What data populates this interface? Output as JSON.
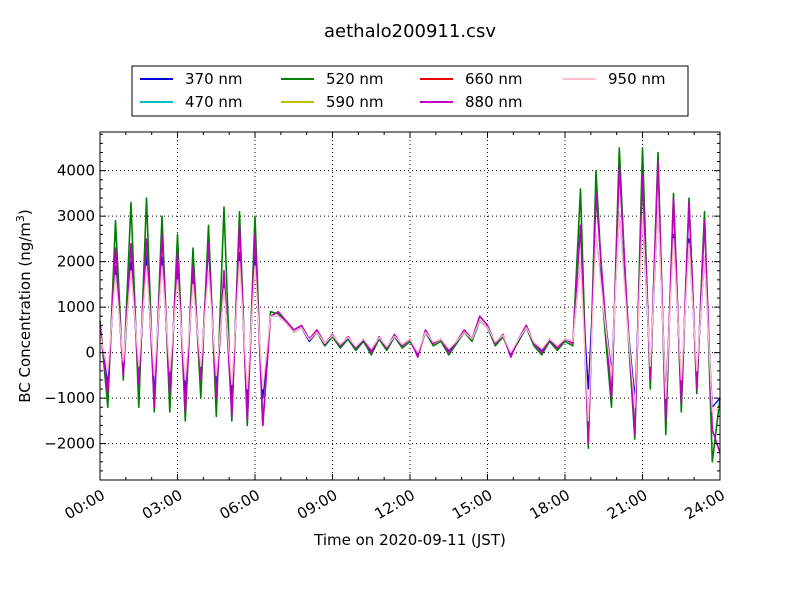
{
  "chart_data": {
    "type": "line",
    "title": "aethalo200911.csv",
    "xlabel": "Time on 2020-09-11 (JST)",
    "ylabel_main": "BC Concentration (ng/m",
    "ylabel_sup": "3",
    "ylabel_tail": ")",
    "xlim": [
      0,
      24
    ],
    "ylim": [
      -2800,
      4850
    ],
    "grid": true,
    "legend_position": "top",
    "x_ticks": [
      0,
      3,
      6,
      9,
      12,
      15,
      18,
      21,
      24
    ],
    "x_tick_labels": [
      "00:00",
      "03:00",
      "06:00",
      "09:00",
      "12:00",
      "15:00",
      "18:00",
      "21:00",
      "24:00"
    ],
    "y_ticks": [
      -2000,
      -1000,
      0,
      1000,
      2000,
      3000,
      4000
    ],
    "y_tick_labels": [
      "−2000",
      "−1000",
      "0",
      "1000",
      "2000",
      "3000",
      "4000"
    ],
    "series": [
      {
        "name": "370 nm",
        "color": "#0000dd"
      },
      {
        "name": "470 nm",
        "color": "#00bfbf"
      },
      {
        "name": "520 nm",
        "color": "#008000"
      },
      {
        "name": "590 nm",
        "color": "#bfbf00"
      },
      {
        "name": "660 nm",
        "color": "#ee0000"
      },
      {
        "name": "880 nm",
        "color": "#bf00bf"
      },
      {
        "name": "950 nm",
        "color": "#ffc0cb"
      }
    ],
    "x": [
      0,
      0.3,
      0.6,
      0.9,
      1.2,
      1.5,
      1.8,
      2.1,
      2.4,
      2.7,
      3.0,
      3.3,
      3.6,
      3.9,
      4.2,
      4.5,
      4.8,
      5.1,
      5.4,
      5.7,
      6.0,
      6.3,
      6.6,
      6.9,
      7.2,
      7.5,
      7.8,
      8.1,
      8.4,
      8.7,
      9.0,
      9.3,
      9.6,
      9.9,
      10.2,
      10.5,
      10.8,
      11.1,
      11.4,
      11.7,
      12.0,
      12.3,
      12.6,
      12.9,
      13.2,
      13.5,
      13.8,
      14.1,
      14.4,
      14.7,
      15.0,
      15.3,
      15.6,
      15.9,
      16.2,
      16.5,
      16.8,
      17.1,
      17.4,
      17.7,
      18.0,
      18.3,
      18.6,
      18.9,
      19.2,
      19.5,
      19.8,
      20.1,
      20.4,
      20.7,
      21.0,
      21.3,
      21.6,
      21.9,
      22.2,
      22.5,
      22.8,
      23.1,
      23.4,
      23.7,
      24.0
    ],
    "values_880nm": [
      600,
      -900,
      2300,
      -500,
      2400,
      -700,
      2500,
      -1200,
      2600,
      -900,
      2200,
      -1300,
      1900,
      -600,
      2400,
      -1000,
      1800,
      -1400,
      2800,
      -1500,
      2600,
      -1600,
      800,
      900,
      700,
      500,
      600,
      300,
      500,
      200,
      400,
      150,
      350,
      100,
      300,
      0,
      350,
      100,
      400,
      150,
      300,
      -100,
      500,
      200,
      300,
      0,
      250,
      500,
      300,
      800,
      600,
      200,
      400,
      -100,
      300,
      600,
      200,
      0,
      300,
      100,
      300,
      200,
      2800,
      -2000,
      3500,
      1200,
      -1000,
      4100,
      1000,
      -1800,
      3900,
      -600,
      4200,
      -1500,
      3400,
      -1100,
      3300,
      -800,
      2900,
      -1700,
      -2200
    ],
    "values_520nm": [
      700,
      -1200,
      2900,
      -600,
      3300,
      -1200,
      3400,
      -1300,
      3000,
      -1300,
      2600,
      -1500,
      2300,
      -1000,
      2800,
      -1400,
      3200,
      -1500,
      3100,
      -1600,
      3000,
      -1600,
      900,
      850,
      700,
      450,
      550,
      250,
      450,
      150,
      350,
      100,
      300,
      50,
      250,
      -50,
      300,
      50,
      350,
      100,
      250,
      -50,
      450,
      150,
      250,
      -50,
      200,
      450,
      250,
      700,
      550,
      150,
      350,
      -50,
      250,
      550,
      150,
      -50,
      250,
      50,
      250,
      150,
      3600,
      -2100,
      4000,
      800,
      -1200,
      4500,
      800,
      -1900,
      4500,
      -800,
      4400,
      -1800,
      3500,
      -1300,
      3400,
      -900,
      3100,
      -2400,
      -1000
    ],
    "values_370nm": [
      500,
      -700,
      1900,
      -400,
      2000,
      -600,
      2100,
      -900,
      2100,
      -700,
      1800,
      -900,
      1600,
      -500,
      2400,
      -800,
      1500,
      -1000,
      2200,
      -1100,
      2100,
      -1000,
      800,
      800,
      650,
      450,
      550,
      250,
      450,
      180,
      380,
      150,
      320,
      100,
      280,
      50,
      320,
      100,
      360,
      150,
      300,
      -50,
      450,
      200,
      300,
      50,
      250,
      450,
      300,
      700,
      550,
      200,
      380,
      -50,
      280,
      550,
      200,
      50,
      280,
      100,
      300,
      250,
      2000,
      -800,
      2600,
      1000,
      -400,
      3100,
      800,
      -1000,
      3000,
      -400,
      3200,
      -900,
      2600,
      -700,
      2500,
      -500,
      2100,
      -1200,
      -1000
    ],
    "values_950nm": [
      400,
      -400,
      1700,
      -200,
      1800,
      -300,
      1900,
      -500,
      1900,
      -400,
      1600,
      -600,
      1500,
      -300,
      1800,
      -500,
      1400,
      -700,
      2000,
      -800,
      1900,
      -800,
      800,
      800,
      650,
      450,
      550,
      280,
      450,
      200,
      380,
      180,
      330,
      130,
      300,
      80,
      330,
      130,
      360,
      180,
      300,
      0,
      450,
      230,
      300,
      80,
      250,
      450,
      300,
      700,
      550,
      230,
      380,
      0,
      300,
      550,
      230,
      80,
      300,
      150,
      300,
      250,
      2000,
      -1500,
      2600,
      900,
      -500,
      3100,
      700,
      -1200,
      3000,
      -300,
      3200,
      -1000,
      2500,
      -600,
      2400,
      -400,
      2100,
      -1300,
      -1200
    ]
  }
}
